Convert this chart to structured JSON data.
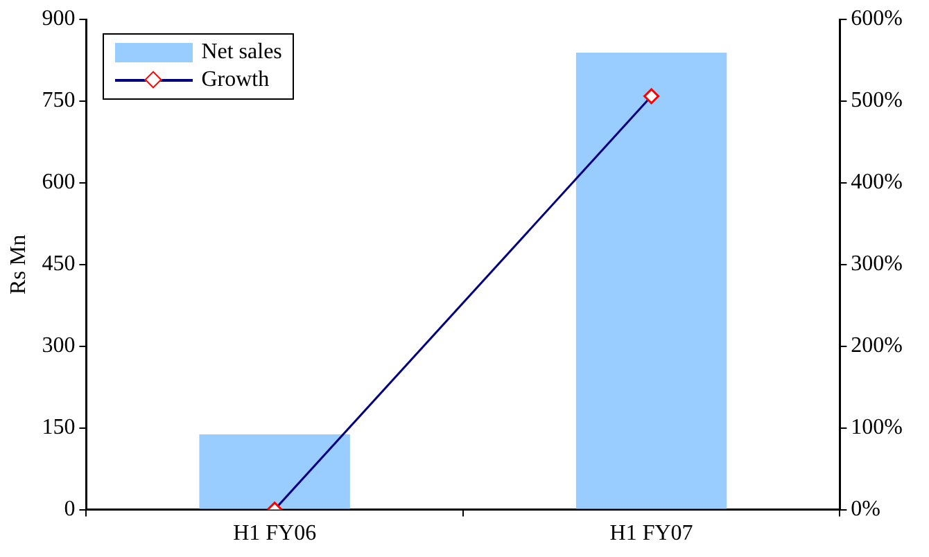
{
  "chart_data": {
    "type": "bar",
    "categories": [
      "H1 FY06",
      "H1 FY07"
    ],
    "ylabel": "Rs Mn",
    "series": [
      {
        "name": "Net sales",
        "color": "#99ccff",
        "values": [
          138,
          839
        ]
      },
      {
        "name": "Growth",
        "type": "line",
        "axis": "y2",
        "color": "#000080",
        "values": [
          0,
          506
        ],
        "marker": "diamond"
      }
    ],
    "ylim": [
      0,
      900
    ],
    "yticks": [
      0,
      150,
      300,
      450,
      600,
      750,
      900
    ],
    "y2lim": [
      0,
      600
    ],
    "y2ticks": [
      {
        "value": 0,
        "label": "0%"
      },
      {
        "value": 100,
        "label": "100%"
      },
      {
        "value": 200,
        "label": "200%"
      },
      {
        "value": 300,
        "label": "300%"
      },
      {
        "value": 400,
        "label": "400%"
      },
      {
        "value": 500,
        "label": "500%"
      },
      {
        "value": 600,
        "label": "600%"
      }
    ],
    "grid": false,
    "legend": "top left"
  }
}
